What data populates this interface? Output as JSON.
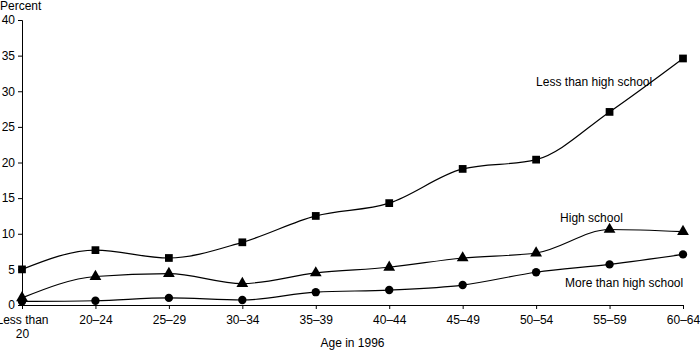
{
  "chart_data": {
    "type": "line",
    "y_label": "Percent",
    "x_label": "Age in 1996",
    "categories": [
      "Less than 20",
      "20–24",
      "25–29",
      "30–34",
      "35–39",
      "40–44",
      "45–49",
      "50–54",
      "55–59",
      "60–64"
    ],
    "series": [
      {
        "name": "Less than high school",
        "color": "#000000",
        "marker": "square",
        "line_style": "solid",
        "values": [
          5.0,
          7.7,
          6.6,
          8.8,
          12.5,
          14.3,
          19.1,
          20.4,
          27.1,
          34.6
        ]
      },
      {
        "name": "High school",
        "color": "#000000",
        "marker": "triangle",
        "line_style": "solid",
        "values": [
          1.0,
          4.0,
          4.4,
          3.0,
          4.5,
          5.3,
          6.6,
          7.3,
          10.6,
          10.3
        ]
      },
      {
        "name": "More than high school",
        "color": "#000000",
        "marker": "circle",
        "line_style": "solid",
        "values": [
          0.5,
          0.6,
          1.0,
          0.7,
          1.8,
          2.1,
          2.8,
          4.6,
          5.7,
          7.1
        ]
      }
    ],
    "ylim": [
      0,
      40
    ],
    "yticks": [
      0,
      5,
      10,
      15,
      20,
      25,
      30,
      35,
      40
    ],
    "grid": false
  }
}
